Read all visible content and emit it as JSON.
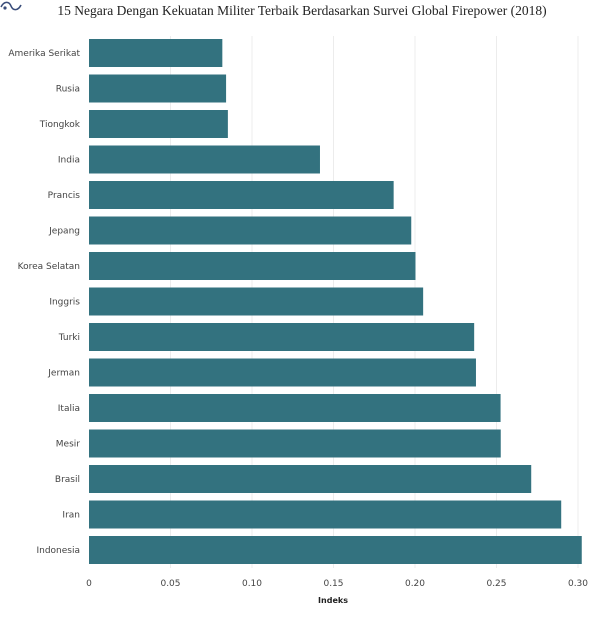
{
  "chart_data": {
    "type": "bar",
    "orientation": "horizontal",
    "title": "15 Negara Dengan Kekuatan Militer Terbaik Berdasarkan Survei Global Firepower (2018)",
    "xlabel": "Indeks",
    "ylabel": "",
    "categories": [
      "Amerika Serikat",
      "Rusia",
      "Tiongkok",
      "India",
      "Prancis",
      "Jepang",
      "Korea Selatan",
      "Inggris",
      "Turki",
      "Jerman",
      "Italia",
      "Mesir",
      "Brasil",
      "Iran",
      "Indonesia"
    ],
    "values": [
      0.0818,
      0.0841,
      0.0852,
      0.1417,
      0.1869,
      0.1977,
      0.2003,
      0.205,
      0.2363,
      0.2374,
      0.2525,
      0.2526,
      0.2713,
      0.2897,
      0.3023
    ],
    "xlim": [
      0,
      0.3
    ],
    "xticks": [
      "0",
      "0.05",
      "0.10",
      "0.15",
      "0.20",
      "0.25",
      "0.30"
    ],
    "grid": true,
    "bar_color": "#33727f"
  }
}
